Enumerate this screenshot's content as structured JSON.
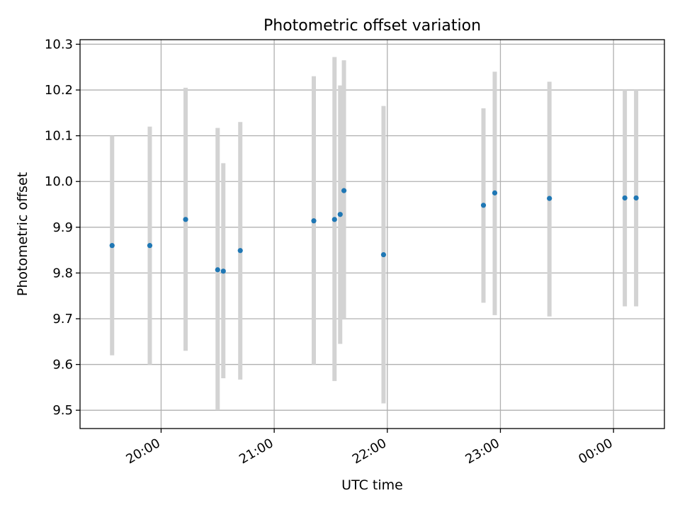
{
  "chart_data": {
    "type": "scatter",
    "title": "Photometric offset variation",
    "xlabel": "UTC time",
    "ylabel": "Photometric offset",
    "x_tick_labels": [
      "20:00",
      "21:00",
      "22:00",
      "23:00",
      "00:00"
    ],
    "x_ticks": [
      "20:00",
      "21:00",
      "22:00",
      "23:00",
      "24:00"
    ],
    "y_ticks": [
      9.5,
      9.6,
      9.7,
      9.8,
      9.9,
      10.0,
      10.1,
      10.2,
      10.3
    ],
    "xlim": [
      "19:17",
      "00:27"
    ],
    "ylim": [
      9.46,
      10.31
    ],
    "grid": true,
    "point_color": "#1f77b4",
    "errorbar_color": "#d3d3d3",
    "points": [
      {
        "x": "19:34",
        "y": 9.86,
        "yerr_low": 9.62,
        "yerr_high": 10.1
      },
      {
        "x": "19:54",
        "y": 9.86,
        "yerr_low": 9.6,
        "yerr_high": 10.12
      },
      {
        "x": "20:13",
        "y": 9.917,
        "yerr_low": 9.63,
        "yerr_high": 10.205
      },
      {
        "x": "20:30",
        "y": 9.807,
        "yerr_low": 9.5,
        "yerr_high": 10.117
      },
      {
        "x": "20:33",
        "y": 9.804,
        "yerr_low": 9.57,
        "yerr_high": 10.04
      },
      {
        "x": "20:42",
        "y": 9.849,
        "yerr_low": 9.567,
        "yerr_high": 10.13
      },
      {
        "x": "21:21",
        "y": 9.914,
        "yerr_low": 9.6,
        "yerr_high": 10.23
      },
      {
        "x": "21:32",
        "y": 9.917,
        "yerr_low": 9.564,
        "yerr_high": 10.272
      },
      {
        "x": "21:35",
        "y": 9.928,
        "yerr_low": 9.645,
        "yerr_high": 10.21
      },
      {
        "x": "21:37",
        "y": 9.98,
        "yerr_low": 9.7,
        "yerr_high": 10.265
      },
      {
        "x": "21:58",
        "y": 9.84,
        "yerr_low": 9.515,
        "yerr_high": 10.165
      },
      {
        "x": "22:51",
        "y": 9.948,
        "yerr_low": 9.735,
        "yerr_high": 10.16
      },
      {
        "x": "22:57",
        "y": 9.975,
        "yerr_low": 9.708,
        "yerr_high": 10.24
      },
      {
        "x": "23:26",
        "y": 9.963,
        "yerr_low": 9.705,
        "yerr_high": 10.218
      },
      {
        "x": "00:06",
        "y": 9.964,
        "yerr_low": 9.727,
        "yerr_high": 10.2
      },
      {
        "x": "00:12",
        "y": 9.964,
        "yerr_low": 9.727,
        "yerr_high": 10.2
      }
    ]
  }
}
